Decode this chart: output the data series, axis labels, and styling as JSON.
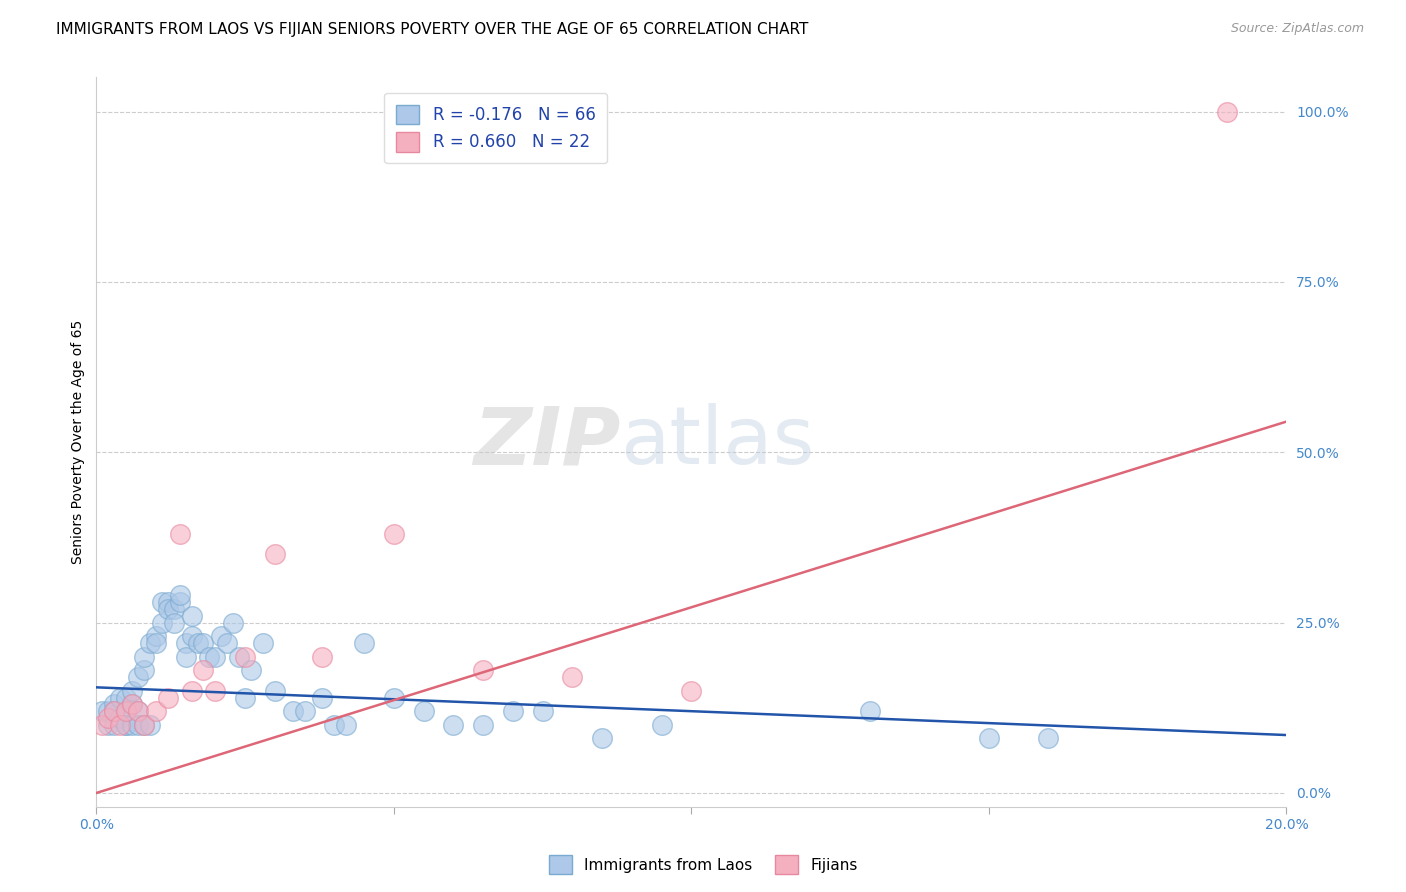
{
  "title": "IMMIGRANTS FROM LAOS VS FIJIAN SENIORS POVERTY OVER THE AGE OF 65 CORRELATION CHART",
  "source": "Source: ZipAtlas.com",
  "ylabel": "Seniors Poverty Over the Age of 65",
  "xlabel_laos": "Immigrants from Laos",
  "xlabel_fijians": "Fijians",
  "watermark_zip": "ZIP",
  "watermark_atlas": "atlas",
  "xmin": 0.0,
  "xmax": 0.2,
  "ymin": -0.02,
  "ymax": 1.05,
  "yticks": [
    0.0,
    0.25,
    0.5,
    0.75,
    1.0
  ],
  "ytick_labels": [
    "0.0%",
    "25.0%",
    "50.0%",
    "75.0%",
    "100.0%"
  ],
  "xticks": [
    0.0,
    0.05,
    0.1,
    0.15,
    0.2
  ],
  "xtick_labels": [
    "0.0%",
    "",
    "",
    "",
    "20.0%"
  ],
  "legend_line1": "R = -0.176   N = 66",
  "legend_line2": "R = 0.660   N = 22",
  "color_laos_face": "#adc8e8",
  "color_laos_edge": "#7aaad0",
  "color_fijians_face": "#f5b0c0",
  "color_fijians_edge": "#e888a0",
  "line_color_laos": "#2255aa",
  "line_color_fijians": "#dd6677",
  "title_fontsize": 11,
  "axis_label_fontsize": 10,
  "tick_fontsize": 10,
  "laos_x": [
    0.001,
    0.002,
    0.002,
    0.003,
    0.003,
    0.003,
    0.004,
    0.004,
    0.005,
    0.005,
    0.005,
    0.005,
    0.006,
    0.006,
    0.006,
    0.007,
    0.007,
    0.007,
    0.008,
    0.008,
    0.008,
    0.009,
    0.009,
    0.01,
    0.01,
    0.011,
    0.011,
    0.012,
    0.012,
    0.013,
    0.013,
    0.014,
    0.014,
    0.015,
    0.015,
    0.016,
    0.016,
    0.017,
    0.018,
    0.019,
    0.02,
    0.021,
    0.022,
    0.023,
    0.024,
    0.025,
    0.026,
    0.028,
    0.03,
    0.033,
    0.035,
    0.038,
    0.04,
    0.042,
    0.045,
    0.05,
    0.055,
    0.06,
    0.065,
    0.07,
    0.075,
    0.085,
    0.095,
    0.13,
    0.15,
    0.16
  ],
  "laos_y": [
    0.12,
    0.1,
    0.12,
    0.13,
    0.1,
    0.12,
    0.14,
    0.11,
    0.1,
    0.12,
    0.14,
    0.1,
    0.13,
    0.15,
    0.1,
    0.12,
    0.17,
    0.1,
    0.18,
    0.2,
    0.1,
    0.22,
    0.1,
    0.23,
    0.22,
    0.28,
    0.25,
    0.28,
    0.27,
    0.27,
    0.25,
    0.28,
    0.29,
    0.22,
    0.2,
    0.23,
    0.26,
    0.22,
    0.22,
    0.2,
    0.2,
    0.23,
    0.22,
    0.25,
    0.2,
    0.14,
    0.18,
    0.22,
    0.15,
    0.12,
    0.12,
    0.14,
    0.1,
    0.1,
    0.22,
    0.14,
    0.12,
    0.1,
    0.1,
    0.12,
    0.12,
    0.08,
    0.1,
    0.12,
    0.08,
    0.08
  ],
  "fijians_x": [
    0.001,
    0.002,
    0.003,
    0.004,
    0.005,
    0.006,
    0.007,
    0.008,
    0.01,
    0.012,
    0.014,
    0.016,
    0.018,
    0.02,
    0.025,
    0.03,
    0.038,
    0.05,
    0.065,
    0.08,
    0.1,
    0.19
  ],
  "fijians_y": [
    0.1,
    0.11,
    0.12,
    0.1,
    0.12,
    0.13,
    0.12,
    0.1,
    0.12,
    0.14,
    0.38,
    0.15,
    0.18,
    0.15,
    0.2,
    0.35,
    0.2,
    0.38,
    0.18,
    0.17,
    0.15,
    1.0
  ],
  "laos_trend_x": [
    0.0,
    0.2
  ],
  "laos_trend_y": [
    0.155,
    0.085
  ],
  "fijians_trend_x": [
    0.0,
    0.2
  ],
  "fijians_trend_y": [
    0.0,
    0.545
  ]
}
